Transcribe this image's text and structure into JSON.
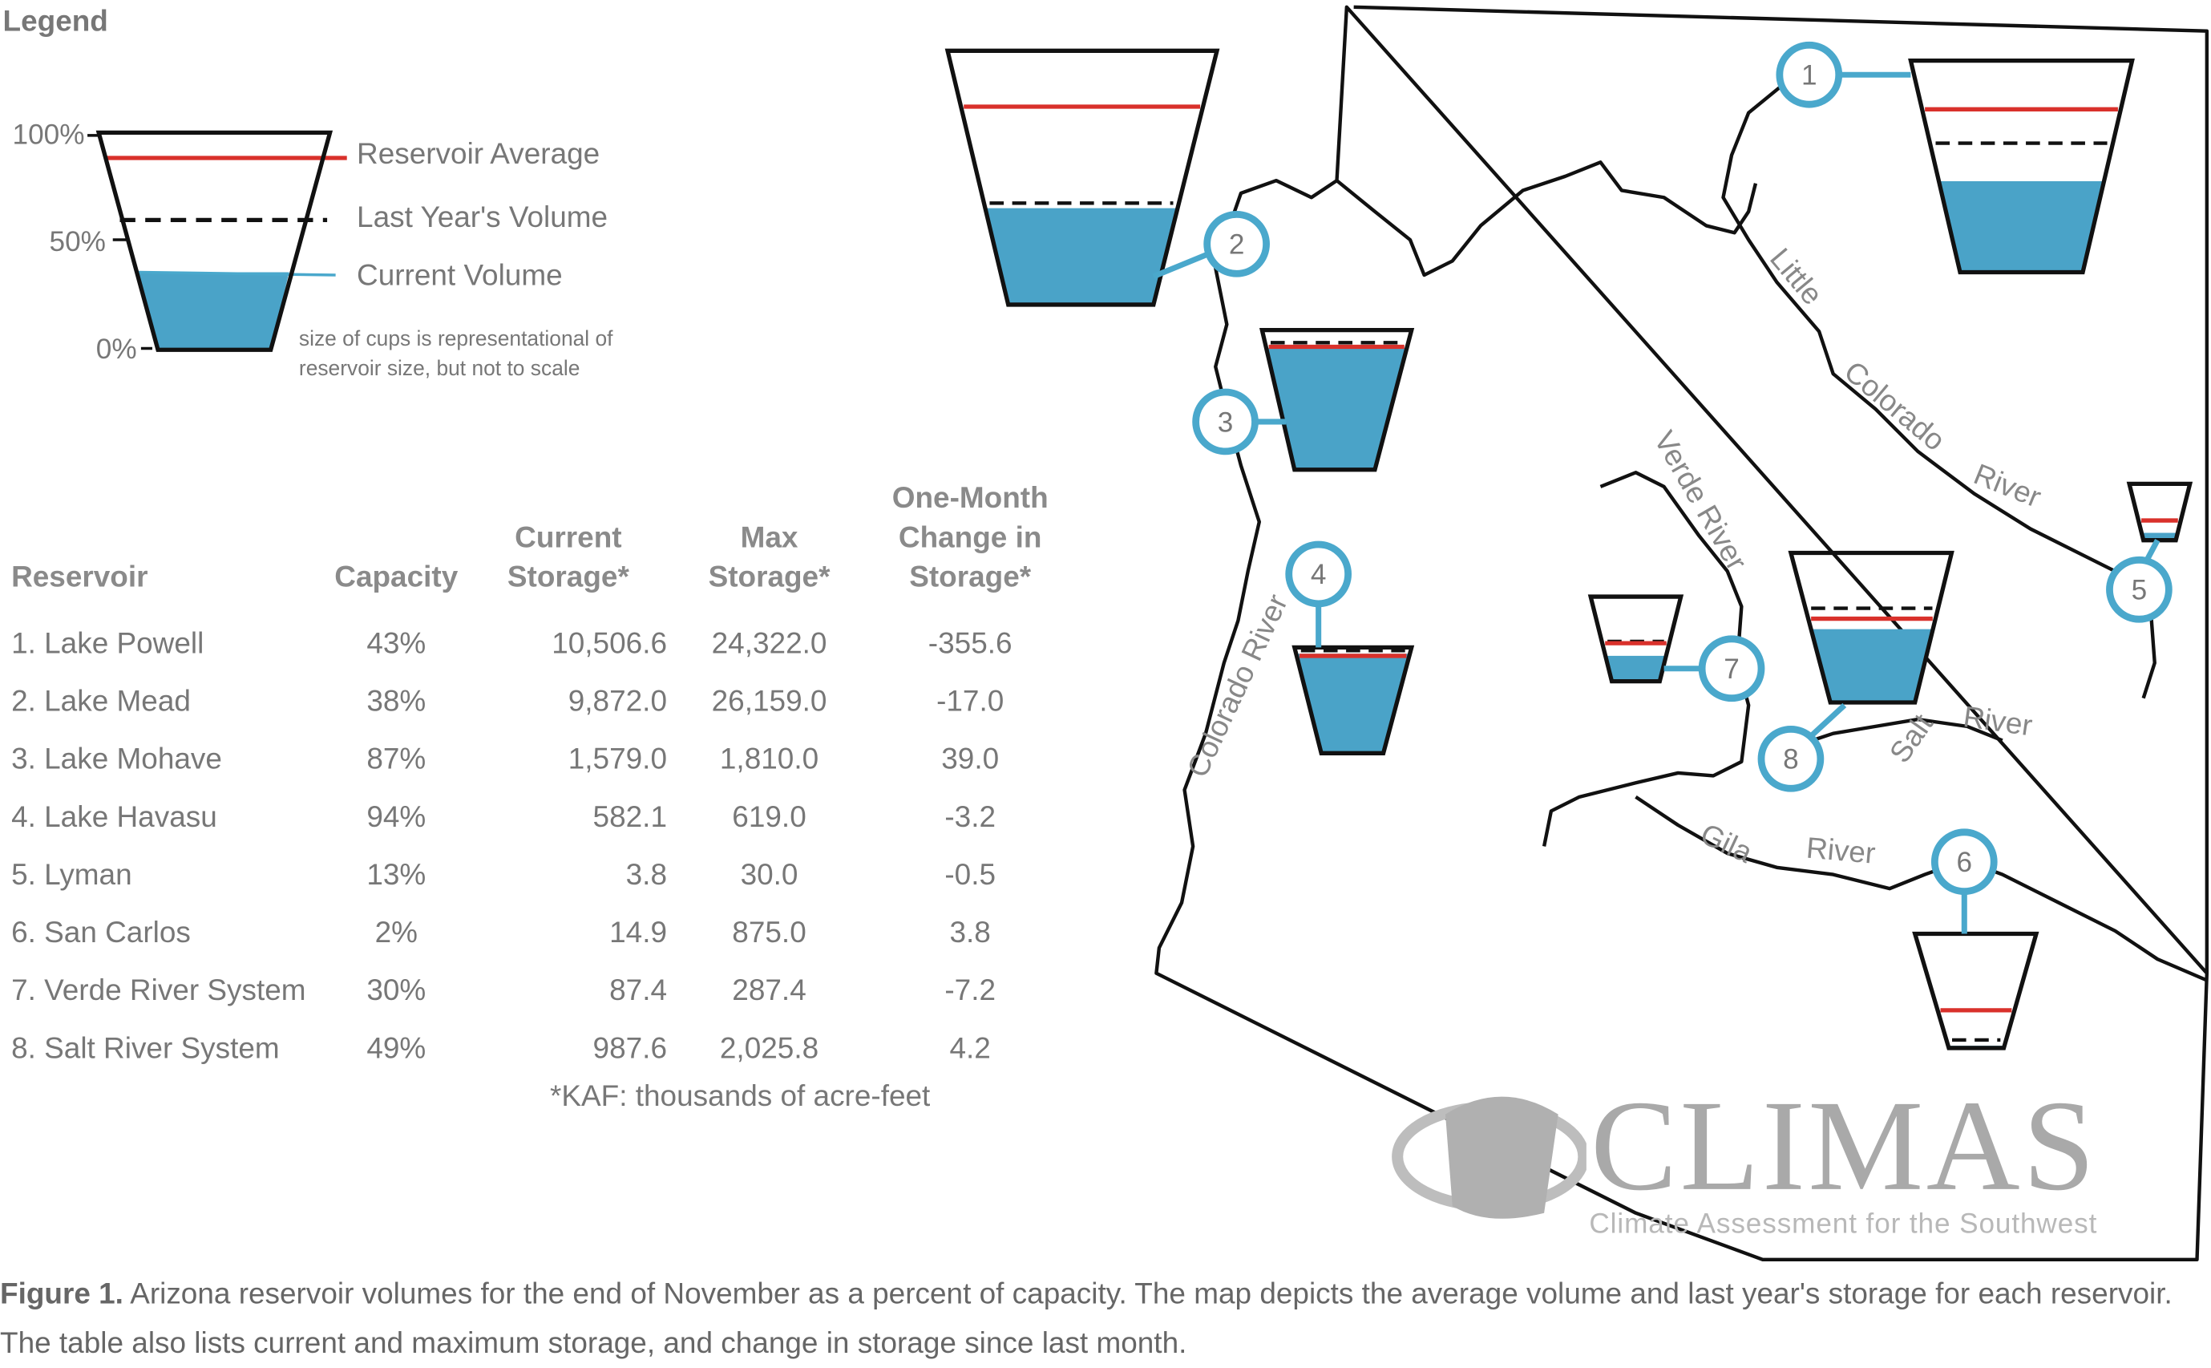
{
  "legend": {
    "title": "Legend",
    "ticks": [
      "100%",
      "50%",
      "0%"
    ],
    "labels": {
      "average": "Reservoir Average",
      "last_year": "Last Year's Volume",
      "current": "Current Volume"
    },
    "note_line1": "size of cups is representational of",
    "note_line2": "reservoir size, but not to scale"
  },
  "colors": {
    "water": "#4aa3c8",
    "average": "#d9312b",
    "marker": "#4aa8cc",
    "outline": "#111111"
  },
  "table": {
    "headers": {
      "reservoir": "Reservoir",
      "capacity": "Capacity",
      "current_1": "Current",
      "current_2": "Storage*",
      "max_1": "Max",
      "max_2": "Storage*",
      "change_1": "One-Month",
      "change_2": "Change in",
      "change_3": "Storage*"
    },
    "rows": [
      {
        "name": "1. Lake Powell",
        "capacity": "43%",
        "current": "10,506.6",
        "max": "24,322.0",
        "change": "-355.6"
      },
      {
        "name": "2. Lake Mead",
        "capacity": "38%",
        "current": "9,872.0",
        "max": "26,159.0",
        "change": "-17.0"
      },
      {
        "name": "3. Lake Mohave",
        "capacity": "87%",
        "current": "1,579.0",
        "max": "1,810.0",
        "change": "39.0"
      },
      {
        "name": "4. Lake Havasu",
        "capacity": "94%",
        "current": "582.1",
        "max": "619.0",
        "change": "-3.2"
      },
      {
        "name": "5. Lyman",
        "capacity": "13%",
        "current": "3.8",
        "max": "30.0",
        "change": "-0.5"
      },
      {
        "name": "6. San Carlos",
        "capacity": "2%",
        "current": "14.9",
        "max": "875.0",
        "change": "3.8"
      },
      {
        "name": "7. Verde River System",
        "capacity": "30%",
        "current": "87.4",
        "max": "287.4",
        "change": "-7.2"
      },
      {
        "name": "8. Salt River System",
        "capacity": "49%",
        "current": "987.6",
        "max": "2,025.8",
        "change": "4.2"
      }
    ],
    "footnote": "*KAF: thousands of acre-feet"
  },
  "map": {
    "reservoirs": [
      {
        "id": "1",
        "current": 0.43,
        "average": 0.77,
        "last_year": 0.61
      },
      {
        "id": "2",
        "current": 0.38,
        "average": 0.78,
        "last_year": 0.4
      },
      {
        "id": "3",
        "current": 0.87,
        "average": 0.88,
        "last_year": 0.91
      },
      {
        "id": "4",
        "current": 0.94,
        "average": 0.92,
        "last_year": 0.97
      },
      {
        "id": "5",
        "current": 0.13,
        "average": 0.35,
        "last_year": null
      },
      {
        "id": "6",
        "current": 0.02,
        "average": 0.33,
        "last_year": 0.07
      },
      {
        "id": "7",
        "current": 0.3,
        "average": 0.45,
        "last_year": 0.47
      },
      {
        "id": "8",
        "current": 0.49,
        "average": 0.56,
        "last_year": 0.63
      }
    ],
    "rivers": {
      "little": "Little",
      "colorado_east": "Colorado",
      "river_east": "River",
      "verde": "Verde River",
      "colorado_west": "Colorado River",
      "salt": "Salt",
      "salt_river": "River",
      "gila": "Gila",
      "gila_river": "River"
    }
  },
  "logo": {
    "name": "CLIMAS",
    "subtitle": "Climate Assessment for the Southwest"
  },
  "caption": {
    "label": "Figure 1.",
    "text": " Arizona reservoir volumes for the end of November as a percent of capacity. The map depicts the average volume and last year's storage for each reservoir. The table also lists current and maximum storage, and change in storage since last month."
  }
}
